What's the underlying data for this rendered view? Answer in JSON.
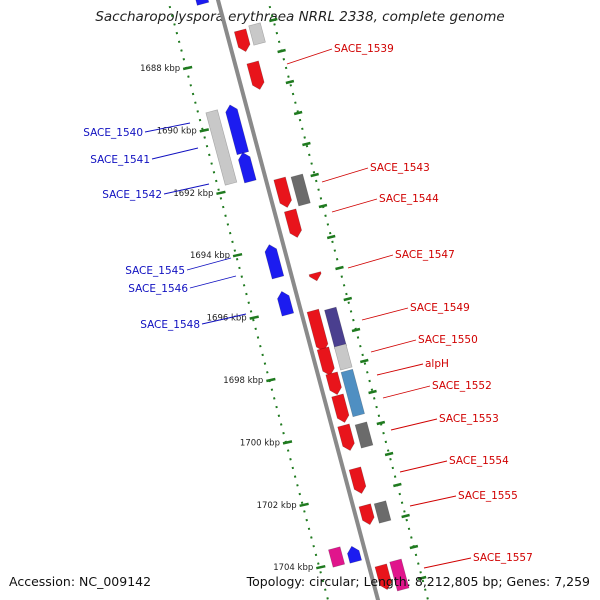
{
  "title": "Saccharopolyspora erythraea NRRL 2338, complete genome",
  "footer": {
    "accession": "Accession: NC_009142",
    "stats": "Topology: circular; Length: 8,212,805 bp; Genes: 7,259"
  },
  "colors": {
    "backbone": "#8a8a8a",
    "forward_gene": "#e8141b",
    "reverse_gene": "#1c1cf0",
    "pseudo_gene": "#c8c8c8",
    "other_gene": "#6b6b6b",
    "tick": "#1f7a1f",
    "forward_label": "#d00000",
    "reverse_label": "#1010c0"
  },
  "ruler": [
    {
      "label": "1688 kbp"
    },
    {
      "label": "1690 kbp"
    },
    {
      "label": "1692 kbp"
    },
    {
      "label": "1694 kbp"
    },
    {
      "label": "1696 kbp"
    },
    {
      "label": "1698 kbp"
    },
    {
      "label": "1700 kbp"
    },
    {
      "label": "1702 kbp"
    },
    {
      "label": "1704 kbp"
    }
  ],
  "forward_labels": [
    "SACE_1539",
    "SACE_1543",
    "SACE_1544",
    "SACE_1547",
    "SACE_1549",
    "SACE_1550",
    "alpH",
    "SACE_1552",
    "SACE_1553",
    "SACE_1554",
    "SACE_1555",
    "SACE_1557"
  ],
  "reverse_labels": [
    "SACE_1540",
    "SACE_1541",
    "SACE_1542",
    "SACE_1545",
    "SACE_1546",
    "SACE_1548"
  ]
}
